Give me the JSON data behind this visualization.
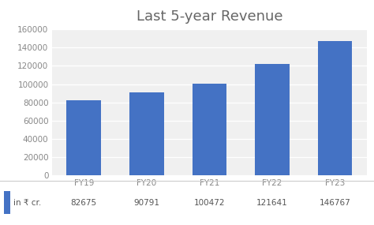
{
  "title": "Last 5-year Revenue",
  "categories": [
    "FY19",
    "FY20",
    "FY21",
    "FY22",
    "FY23"
  ],
  "values": [
    82675,
    90791,
    100472,
    121641,
    146767
  ],
  "bar_color": "#4472C4",
  "ylim": [
    0,
    160000
  ],
  "yticks": [
    0,
    20000,
    40000,
    60000,
    80000,
    100000,
    120000,
    140000,
    160000
  ],
  "legend_label": "in ₹ cr.",
  "legend_values": [
    "82675",
    "90791",
    "100472",
    "121641",
    "146767"
  ],
  "background_color": "#ffffff",
  "plot_bg_color": "#f0f0f0",
  "title_fontsize": 13,
  "tick_fontsize": 7.5,
  "legend_fontsize": 7.5,
  "bar_width": 0.55,
  "grid_color": "#ffffff",
  "grid_linewidth": 1.0,
  "title_color": "#666666",
  "tick_color": "#888888"
}
